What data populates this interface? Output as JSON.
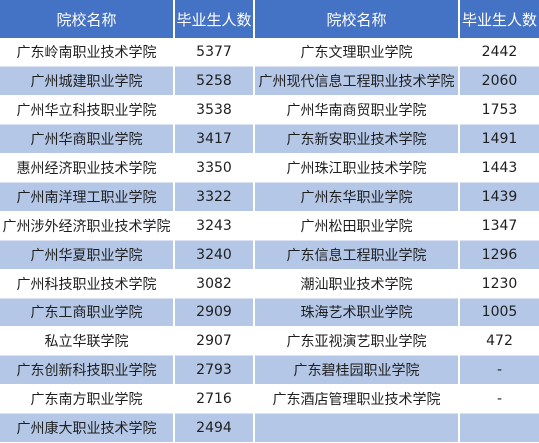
{
  "table": {
    "headers": [
      "院校名称",
      "毕业生人数",
      "院校名称",
      "毕业生人数"
    ],
    "rows": [
      [
        "广东岭南职业技术学院",
        "5377",
        "广东文理职业学院",
        "2442"
      ],
      [
        "广州城建职业学院",
        "5258",
        "广州现代信息工程职业技术学院",
        "2060"
      ],
      [
        "广州华立科技职业学院",
        "3538",
        "广州华南商贸职业学院",
        "1753"
      ],
      [
        "广州华商职业学院",
        "3417",
        "广东新安职业技术学院",
        "1491"
      ],
      [
        "惠州经济职业技术学院",
        "3350",
        "广州珠江职业技术学院",
        "1443"
      ],
      [
        "广州南洋理工职业学院",
        "3322",
        "广州东华职业学院",
        "1439"
      ],
      [
        "广州涉外经济职业技术学院",
        "3243",
        "广州松田职业学院",
        "1347"
      ],
      [
        "广州华夏职业学院",
        "3240",
        "广东信息工程职业学院",
        "1296"
      ],
      [
        "广州科技职业技术学院",
        "3082",
        "潮汕职业技术学院",
        "1230"
      ],
      [
        "广东工商职业学院",
        "2909",
        "珠海艺术职业学院",
        "1005"
      ],
      [
        "私立华联学院",
        "2907",
        "广东亚视演艺职业学院",
        "472"
      ],
      [
        "广东创新科技职业学院",
        "2793",
        "广东碧桂园职业学院",
        "-"
      ],
      [
        "广东南方职业学院",
        "2716",
        "广东酒店管理职业技术学院",
        "-"
      ],
      [
        "广州康大职业技术学院",
        "2494",
        "",
        ""
      ]
    ]
  }
}
